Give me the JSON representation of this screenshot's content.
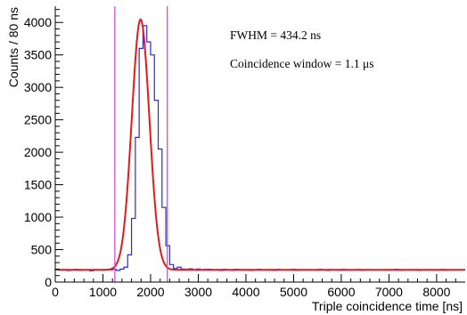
{
  "colors": {
    "histogram": "#2b2bd6",
    "fit": "#e31a1a",
    "window": "#d848d8",
    "axis": "#000000",
    "background": "#ffffff"
  },
  "chart_data": {
    "type": "line",
    "xlabel": "Triple coincidence time [ns]",
    "ylabel": "Counts / 80 ns",
    "xlim": [
      0,
      8600
    ],
    "ylim": [
      0,
      4250
    ],
    "xticks": [
      0,
      1000,
      2000,
      3000,
      4000,
      5000,
      6000,
      7000,
      8000
    ],
    "yticks": [
      0,
      500,
      1000,
      1500,
      2000,
      2500,
      3000,
      3500,
      4000
    ],
    "xtick_labels": [
      "0",
      "1000",
      "2000",
      "3000",
      "4000",
      "5000",
      "6000",
      "7000",
      "8000"
    ],
    "ytick_labels": [
      "0",
      "500",
      "1000",
      "1500",
      "2000",
      "2500",
      "3000",
      "3500",
      "4000"
    ],
    "grid": false,
    "annotations": {
      "fwhm": "FWHM = 434.2 ns",
      "window": "Coincidence window = 1.1 μs"
    },
    "histogram": {
      "bin_width": 80,
      "x_start": 0,
      "values": [
        190,
        185,
        192,
        178,
        188,
        195,
        182,
        190,
        187,
        175,
        192,
        186,
        183,
        191,
        188,
        196,
        180,
        200,
        230,
        420,
        980,
        2230,
        3600,
        3950,
        3700,
        3500,
        2800,
        2050,
        1150,
        560,
        270,
        210,
        230,
        200,
        195,
        205,
        190,
        200,
        188,
        195,
        198,
        185,
        192,
        180,
        195,
        190,
        182,
        197,
        188,
        185,
        193,
        180,
        190,
        195,
        188,
        186,
        192,
        179,
        195,
        188,
        190,
        184,
        196,
        181,
        189,
        193,
        186,
        190,
        185,
        195,
        188,
        180,
        192,
        187,
        183,
        196,
        190,
        185,
        188,
        194,
        182,
        189,
        193,
        186,
        190,
        187,
        184,
        192,
        188,
        195,
        183,
        189,
        190,
        186,
        193,
        181,
        188,
        192,
        187,
        185,
        190,
        194,
        183,
        189,
        186,
        191,
        188
      ]
    },
    "fit": {
      "type": "gaussian_plus_constant",
      "mean": 1790,
      "sigma": 184.4,
      "amplitude": 3860,
      "constant": 188,
      "x_range": [
        50,
        8600
      ]
    },
    "window_lines": [
      1250,
      2350
    ]
  }
}
